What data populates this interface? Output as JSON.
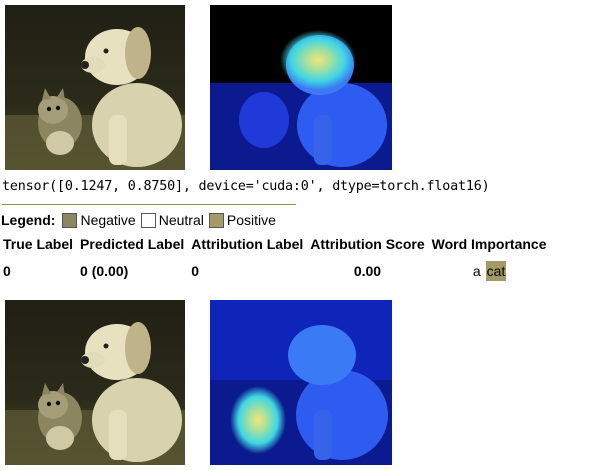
{
  "output": {
    "tensor_text": "tensor([0.1247, 0.8750], device='cuda:0', dtype=torch.float16)"
  },
  "legend": {
    "title": "Legend:",
    "items": [
      {
        "label": "Negative",
        "color": "#8c8661"
      },
      {
        "label": "Neutral",
        "color": "#ffffff"
      },
      {
        "label": "Positive",
        "color": "#a39a68"
      }
    ]
  },
  "table": {
    "headers": [
      "True Label",
      "Predicted Label",
      "Attribution Label",
      "Attribution Score",
      "Word Importance"
    ],
    "row": {
      "true_label": "0",
      "predicted_label": "0 (0.00)",
      "attribution_label": "0",
      "attribution_score": "0.00",
      "words": [
        "a",
        "cat"
      ]
    }
  },
  "images": {
    "first_heatmap_focus": "puppy head",
    "second_heatmap_focus": "kitten"
  },
  "colors": {
    "sepia_bg": "#2c2b1c",
    "heatmap_bg": "#1b30d6",
    "word_highlight": "#a39a68"
  }
}
